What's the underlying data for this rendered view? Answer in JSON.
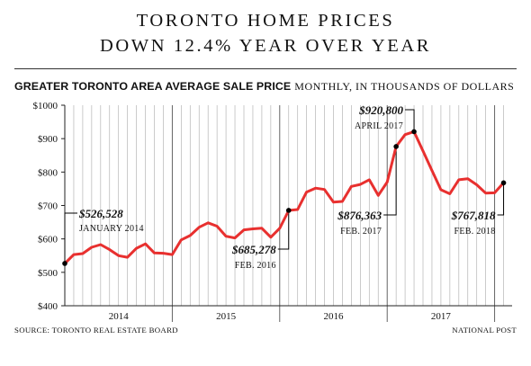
{
  "header": {
    "title_line1": "TORONTO HOME PRICES",
    "title_line2": "DOWN 12.4% YEAR OVER YEAR",
    "subtitle_bold": "GREATER TORONTO AREA AVERAGE SALE PRICE",
    "subtitle_regular": "MONTHLY, IN THOUSANDS OF DOLLARS"
  },
  "footer": {
    "source": "SOURCE: TORONTO REAL ESTATE BOARD",
    "credit": "NATIONAL POST"
  },
  "colors": {
    "line": "#e8302f",
    "grid": "#b5b5b5",
    "text": "#111111",
    "annotation": "#000000"
  },
  "chart_data": {
    "type": "line",
    "ylim": [
      400,
      1000
    ],
    "yticks": [
      400,
      500,
      600,
      700,
      800,
      900,
      1000
    ],
    "ytick_labels": [
      "$400",
      "$500",
      "$600",
      "$700",
      "$800",
      "$900",
      "$1000"
    ],
    "grid": "vertical-monthly",
    "year_labels": [
      "2014",
      "2015",
      "2016",
      "2017"
    ],
    "series": [
      {
        "values": [
          526.528,
          553,
          556,
          575,
          583,
          568,
          550,
          545,
          572,
          585,
          558,
          557,
          553,
          597,
          610,
          635,
          648,
          638,
          608,
          603,
          627,
          630,
          632,
          605,
          632,
          685.278,
          688,
          740,
          752,
          748,
          710,
          712,
          757,
          763,
          777,
          730,
          770,
          876.363,
          912,
          920.8,
          863,
          805,
          747,
          735,
          777,
          780,
          762,
          737,
          738,
          767.818
        ]
      }
    ],
    "annotations": [
      {
        "value": "$526,528",
        "date": "JANUARY 2014"
      },
      {
        "value": "$685,278",
        "date": "FEB. 2016"
      },
      {
        "value": "$876,363",
        "date": "FEB. 2017"
      },
      {
        "value": "$920,800",
        "date": "APRIL 2017"
      },
      {
        "value": "$767,818",
        "date": "FEB. 2018"
      }
    ]
  }
}
